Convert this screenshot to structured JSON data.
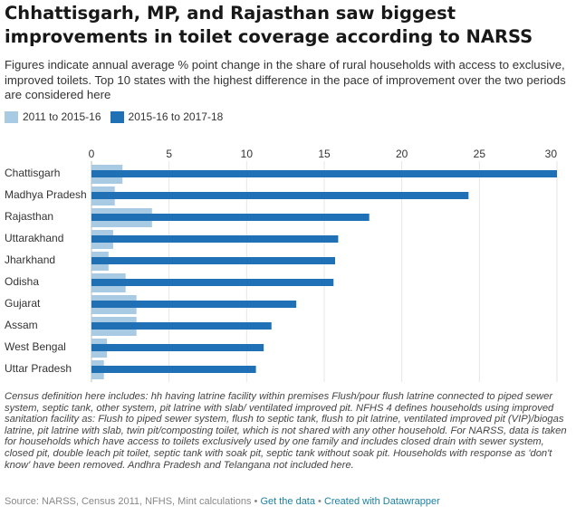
{
  "title": "Chhattisgarh, MP, and Rajasthan saw biggest improvements in toilet coverage according to NARSS",
  "subtitle": "Figures indicate annual average % point change in the share of rural households with access to exclusive, improved toilets. Top 10 states with the highest difference in the pace of improvement over the two periods are considered here",
  "notes": "Census definition here includes: hh having latrine facility within premises Flush/pour flush latrine connected to piped sewer system, septic tank, other system, pit latrine with slab/ ventilated improved pit. NFHS 4 defines households using improved sanitation facility as: Flush to piped sewer system, flush to septic tank, flush to pit latrine, ventilated improved pit (VIP)/biogas latrine, pit latrine with slab, twin pit/composting toilet, which is not shared with any other household. For NARSS, data is taken for households which have access to toilets exclusively used by one family and includes closed drain with sewer system, closed pit, double leach pit toilet, septic tank with soak pit, septic tank without soak pit. Households with response as 'don't know' have been removed. Andhra Pradesh and Telangana not included here.",
  "footer": {
    "source": "Source: NARSS, Census 2011, NFHS, Mint calculations",
    "sep1": " • ",
    "get_data": "Get the data",
    "sep2": " • ",
    "created": "Created with Datawrapper"
  },
  "colors": {
    "series1": "#a8cbe3",
    "series2": "#1f70b4"
  },
  "chart_data": {
    "type": "bar",
    "orientation": "horizontal",
    "categories": [
      "Chattisgarh",
      "Madhya Pradesh",
      "Rajasthan",
      "Uttarakhand",
      "Jharkhand",
      "Odisha",
      "Gujarat",
      "Assam",
      "West Bengal",
      "Uttar Pradesh"
    ],
    "series": [
      {
        "name": "2011 to 2015-16",
        "values": [
          2.0,
          1.5,
          3.9,
          1.4,
          1.1,
          2.2,
          2.9,
          2.9,
          1.0,
          0.8
        ]
      },
      {
        "name": "2015-16 to 2017-18",
        "values": [
          30.0,
          24.3,
          17.9,
          15.9,
          15.7,
          15.6,
          13.2,
          11.6,
          11.1,
          10.6
        ]
      }
    ],
    "xlim": [
      0,
      30
    ],
    "ticks": [
      "0",
      "5",
      "10",
      "15",
      "20",
      "25",
      "30"
    ],
    "grid": true,
    "legend": "top-left"
  }
}
